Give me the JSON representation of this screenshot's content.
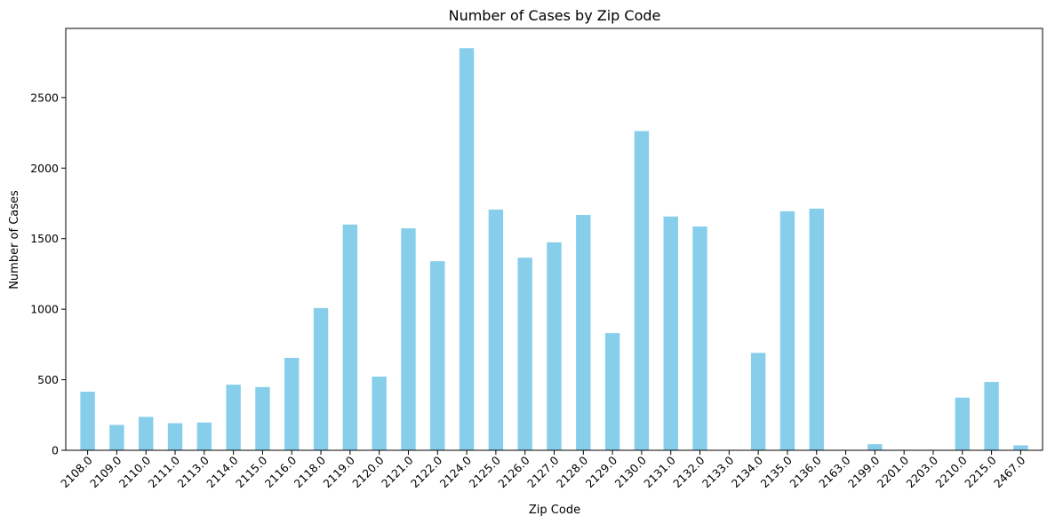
{
  "chart_data": {
    "type": "bar",
    "title": "Number of Cases by Zip Code",
    "xlabel": "Zip Code",
    "ylabel": "Number of Cases",
    "categories": [
      "2108.0",
      "2109.0",
      "2110.0",
      "2111.0",
      "2113.0",
      "2114.0",
      "2115.0",
      "2116.0",
      "2118.0",
      "2119.0",
      "2120.0",
      "2121.0",
      "2122.0",
      "2124.0",
      "2125.0",
      "2126.0",
      "2127.0",
      "2128.0",
      "2129.0",
      "2130.0",
      "2131.0",
      "2132.0",
      "2133.0",
      "2134.0",
      "2135.0",
      "2136.0",
      "2163.0",
      "2199.0",
      "2201.0",
      "2203.0",
      "2210.0",
      "2215.0",
      "2467.0"
    ],
    "values": [
      415,
      180,
      237,
      192,
      197,
      465,
      448,
      655,
      1008,
      1600,
      522,
      1573,
      1340,
      2850,
      1706,
      1365,
      1474,
      1668,
      830,
      2262,
      1657,
      1586,
      3,
      690,
      1694,
      1713,
      2,
      43,
      2,
      2,
      373,
      484,
      35
    ],
    "ylim": [
      0,
      2990
    ],
    "yticks": [
      0,
      500,
      1000,
      1500,
      2000,
      2500
    ],
    "bar_color": "#87ceeb",
    "axis_color": "#000000",
    "grid": false,
    "legend": "none",
    "x_tick_rotation_deg": 45
  }
}
